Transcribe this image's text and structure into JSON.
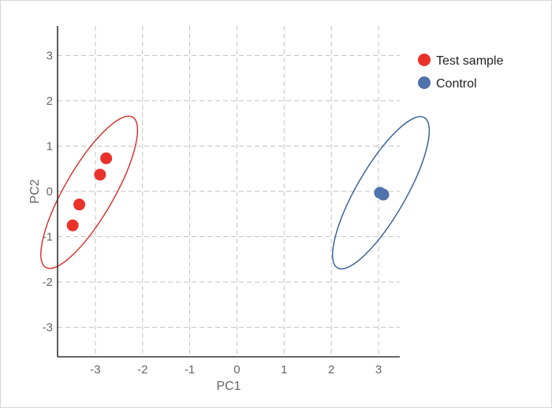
{
  "chart_data": {
    "type": "scatter",
    "title": "",
    "xlabel": "PC1",
    "ylabel": "PC2",
    "xlim": [
      -3.8,
      3.45
    ],
    "ylim": [
      -3.65,
      3.65
    ],
    "xticks": [
      -3,
      -2,
      -1,
      0,
      1,
      2,
      3
    ],
    "yticks": [
      3,
      2,
      1,
      0,
      -1,
      -2,
      -3
    ],
    "xtick_labels": [
      "-3",
      "-2",
      "-1",
      "0",
      "1",
      "2",
      "3"
    ],
    "ytick_labels": [
      "3",
      "2",
      "1",
      "0",
      "-1",
      "-2",
      "-3"
    ],
    "grid": true,
    "legend_position": "top-right",
    "series": [
      {
        "name": "Test sample",
        "color": "#e8322a",
        "ellipse_color": "#d42a22",
        "points": [
          {
            "x": -3.48,
            "y": -0.75
          },
          {
            "x": -3.34,
            "y": -0.29
          },
          {
            "x": -2.9,
            "y": 0.37
          },
          {
            "x": -2.77,
            "y": 0.73
          }
        ],
        "ellipse": {
          "cx": -3.13,
          "cy": -0.02,
          "rx": 1.84,
          "ry": 0.52,
          "angle_deg": 60
        }
      },
      {
        "name": "Control",
        "color": "#4f72ad",
        "ellipse_color": "#2f5b8f",
        "points": [
          {
            "x": 3.03,
            "y": -0.03
          },
          {
            "x": 3.1,
            "y": -0.07
          }
        ],
        "ellipse": {
          "cx": 3.05,
          "cy": -0.03,
          "rx": 1.84,
          "ry": 0.52,
          "angle_deg": 60
        }
      }
    ]
  }
}
